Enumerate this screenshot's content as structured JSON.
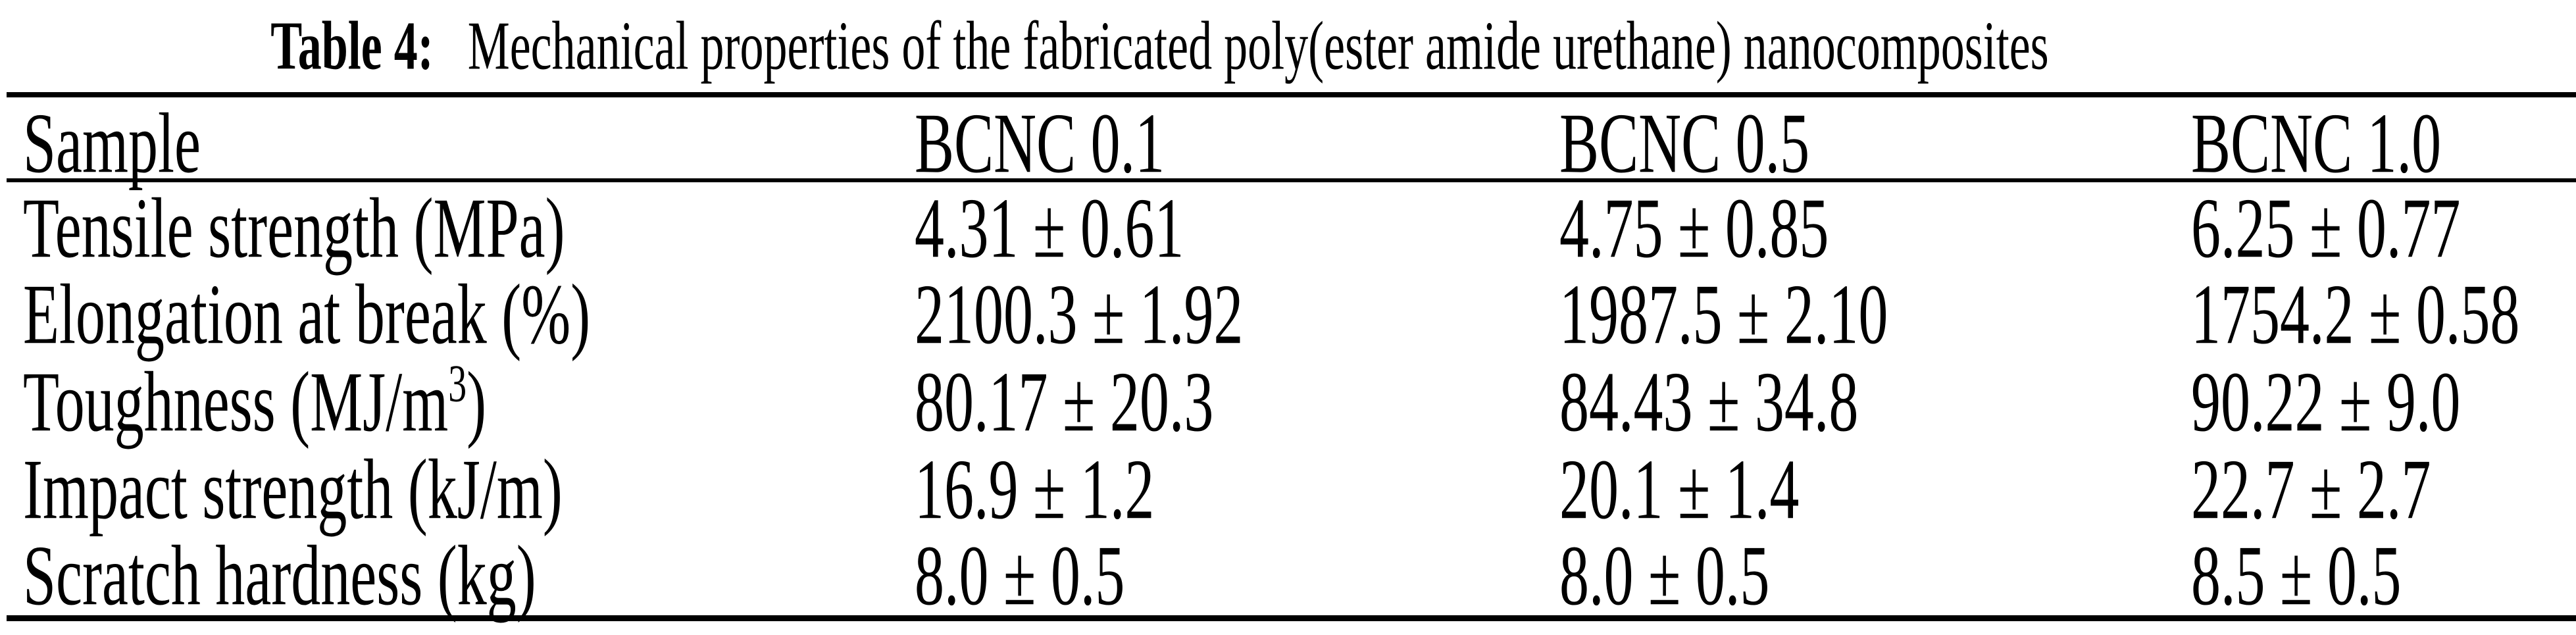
{
  "title": {
    "label": "Table 4:",
    "text": "Mechanical properties of the fabricated poly(ester amide urethane) nanocomposites"
  },
  "table": {
    "columns": [
      "Sample",
      "BCNC 0.1",
      "BCNC 0.5",
      "BCNC 1.0"
    ],
    "rows": [
      {
        "label": "Tensile strength (MPa)",
        "label_sup": "",
        "label_end": "",
        "values": [
          "4.31 ± 0.61",
          "4.75 ± 0.85",
          "6.25 ± 0.77"
        ]
      },
      {
        "label": "Elongation at break (%)",
        "label_sup": "",
        "label_end": "",
        "values": [
          "2100.3 ± 1.92",
          "1987.5 ± 2.10",
          "1754.2 ± 0.58"
        ]
      },
      {
        "label": "Toughness (MJ/m",
        "label_sup": "3",
        "label_end": ")",
        "values": [
          "80.17 ± 20.3",
          "84.43 ± 34.8",
          "90.22 ± 9.0"
        ]
      },
      {
        "label": "Impact strength (kJ/m)",
        "label_sup": "",
        "label_end": "",
        "values": [
          "16.9 ± 1.2",
          "20.1 ± 1.4",
          "22.7 ± 2.7"
        ]
      },
      {
        "label": "Scratch hardness (kg)",
        "label_sup": "",
        "label_end": "",
        "values": [
          "8.0 ± 0.5",
          "8.0 ± 0.5",
          "8.5 ± 0.5"
        ]
      }
    ]
  },
  "colors": {
    "text": "#000000",
    "background": "#ffffff",
    "rule": "#000000"
  }
}
